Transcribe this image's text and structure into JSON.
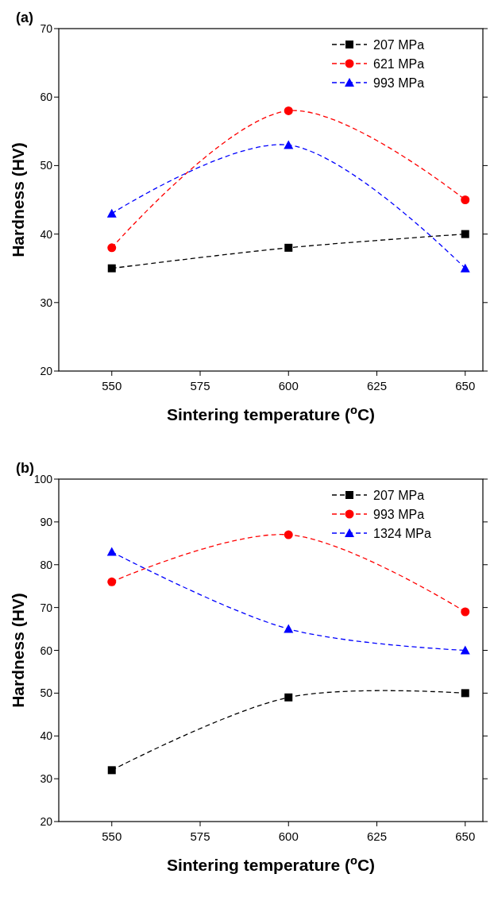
{
  "chart_data": [
    {
      "type": "line",
      "title": "(a)",
      "xlabel": "Sintering temperature ($^{o}$C)",
      "ylabel": "Hardness (HV)",
      "x": [
        550,
        600,
        650
      ],
      "xlim": [
        535,
        655
      ],
      "xticks": [
        550,
        575,
        600,
        625,
        650
      ],
      "ylim": [
        20,
        70
      ],
      "yticks": [
        20,
        30,
        40,
        50,
        60,
        70
      ],
      "grid": false,
      "legend": "top right",
      "line_style": "dashed",
      "series": [
        {
          "name": "207 MPa",
          "color": "#000000",
          "marker": "square",
          "values": [
            35,
            38,
            40
          ]
        },
        {
          "name": "621 MPa",
          "color": "#ff0000",
          "marker": "circle",
          "values": [
            38,
            58,
            45
          ]
        },
        {
          "name": "993 MPa",
          "color": "#0000ff",
          "marker": "triangle",
          "values": [
            43,
            53,
            35
          ]
        }
      ]
    },
    {
      "type": "line",
      "title": "(b)",
      "xlabel": "Sintering temperature ($^{o}$C)",
      "ylabel": "Hardness (HV)",
      "x": [
        550,
        600,
        650
      ],
      "xlim": [
        535,
        655
      ],
      "xticks": [
        550,
        575,
        600,
        625,
        650
      ],
      "ylim": [
        20,
        100
      ],
      "yticks": [
        20,
        30,
        40,
        50,
        60,
        70,
        80,
        90,
        100
      ],
      "grid": false,
      "legend": "top right",
      "line_style": "dashed",
      "series": [
        {
          "name": "207 MPa",
          "color": "#000000",
          "marker": "square",
          "values": [
            32,
            49,
            50
          ]
        },
        {
          "name": "993 MPa",
          "color": "#ff0000",
          "marker": "circle",
          "values": [
            76,
            87,
            69
          ]
        },
        {
          "name": "1324 MPa",
          "color": "#0000ff",
          "marker": "triangle",
          "values": [
            83,
            65,
            60
          ]
        }
      ]
    }
  ]
}
